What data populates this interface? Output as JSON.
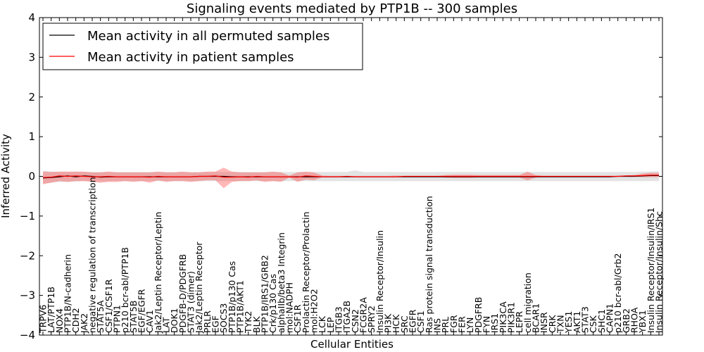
{
  "chart_data": {
    "type": "line",
    "title": "Signaling events mediated by PTP1B -- 300 samples",
    "xlabel": "Cellular Entities",
    "ylabel": "Inferred Activity",
    "ylim": [
      -4,
      4
    ],
    "yticks": [
      -4,
      -3,
      -2,
      -1,
      0,
      1,
      2,
      3,
      4
    ],
    "ytick_labels": [
      "−4",
      "−3",
      "−2",
      "−1",
      "0",
      "1",
      "2",
      "3",
      "4"
    ],
    "legend": {
      "position": "top-left",
      "entries": [
        {
          "label": "Mean activity in all permuted samples",
          "color": "#000000"
        },
        {
          "label": "Mean activity in patient samples",
          "color": "#ff0000"
        }
      ]
    },
    "categories": [
      "TRPV6",
      "LAT/PTP1B",
      "NOX4",
      "PTP1B/N-cadherin",
      "CDH2",
      "JAK2",
      "negative regulation of transcription",
      "STAT5A",
      "CSF1/CSF1R",
      "PTPN1",
      "p210 bcr-abl/PTP1B",
      "STAT5B",
      "EGF/EGFR",
      "CAV1",
      "Jak2/Leptin Receptor/Leptin",
      "LAT",
      "DOK1",
      "PDGFB-D/PDGFRB",
      "STAT3 (dimer)",
      "Jak2/Leptin Receptor",
      "PRLR",
      "EGF",
      "SOCS3",
      "PTP1B/p130 Cas",
      "PTP1B/AKT1",
      "TYK2",
      "BLK",
      "PTP1B/IRS1/GRB2",
      "Crk/p130 Cas",
      "alphaIIb/beta3 Integrin",
      "mol:NADPH",
      "CSF1R",
      "Prolactin Receptor/Prolactin",
      "mol:H2O2",
      "LCK",
      "LEP",
      "ITGB3",
      "ITGA2B",
      "CSN2",
      "FCGR2A",
      "SPRY2",
      "Insulin Receptor/Insulin",
      "PI3K",
      "HCK",
      "SRC",
      "EGFR",
      "CSF1",
      "Ras protein signal transduction",
      "INS",
      "PRL",
      "FGR",
      "FER",
      "LYN",
      "PDGFRB",
      "FYN",
      "IRS1",
      "PIK3CA",
      "PIK3R1",
      "LEPR",
      "cell migration",
      "BCAR1",
      "INSR",
      "CRK",
      "TXN",
      "YES1",
      "AKT1",
      "STAT3",
      "CSK",
      "SHC1",
      "CAPN1",
      "p210 bcr-abl/Grb2",
      "GRB2",
      "RHOA",
      "YBX1",
      "Insulin Receptor/Insulin/IRS1",
      "Insulin Receptor/Insulin/Shc"
    ],
    "series": [
      {
        "name": "Mean activity in all permuted samples",
        "color": "#000000",
        "values": [
          -0.04,
          -0.03,
          -0.01,
          0.01,
          -0.01,
          0.01,
          0.0,
          -0.02,
          -0.01,
          -0.01,
          -0.01,
          -0.01,
          -0.01,
          -0.01,
          -0.01,
          -0.01,
          -0.01,
          -0.01,
          -0.01,
          0.0,
          0.0,
          0.0,
          0.0,
          -0.01,
          -0.01,
          -0.01,
          -0.01,
          -0.01,
          -0.01,
          -0.01,
          -0.01,
          -0.01,
          -0.01,
          -0.01,
          -0.01,
          -0.01,
          -0.01,
          -0.01,
          -0.01,
          -0.01,
          -0.01,
          -0.01,
          -0.01,
          -0.01,
          -0.01,
          -0.01,
          -0.01,
          -0.01,
          -0.01,
          -0.01,
          -0.01,
          -0.01,
          -0.01,
          -0.01,
          -0.01,
          -0.01,
          -0.01,
          -0.01,
          -0.01,
          -0.01,
          -0.01,
          -0.01,
          -0.01,
          -0.01,
          -0.01,
          -0.01,
          -0.01,
          -0.01,
          -0.01,
          -0.01,
          0.0,
          0.0,
          0.0,
          0.01,
          0.02,
          0.02
        ],
        "band_low": [
          -0.18,
          -0.16,
          -0.14,
          -0.14,
          -0.13,
          -0.12,
          -0.12,
          -0.13,
          -0.12,
          -0.12,
          -0.12,
          -0.12,
          -0.12,
          -0.12,
          -0.12,
          -0.12,
          -0.12,
          -0.12,
          -0.12,
          -0.12,
          -0.12,
          -0.12,
          -0.12,
          -0.12,
          -0.12,
          -0.12,
          -0.12,
          -0.12,
          -0.12,
          -0.12,
          -0.12,
          -0.12,
          -0.12,
          -0.12,
          -0.12,
          -0.12,
          -0.12,
          -0.12,
          -0.12,
          -0.12,
          -0.12,
          -0.12,
          -0.12,
          -0.12,
          -0.12,
          -0.12,
          -0.12,
          -0.12,
          -0.12,
          -0.12,
          -0.12,
          -0.12,
          -0.12,
          -0.12,
          -0.12,
          -0.12,
          -0.12,
          -0.12,
          -0.12,
          -0.12,
          -0.12,
          -0.12,
          -0.12,
          -0.12,
          -0.12,
          -0.12,
          -0.12,
          -0.12,
          -0.12,
          -0.12,
          -0.12,
          -0.12,
          -0.12,
          -0.12,
          -0.12,
          -0.12
        ],
        "band_high": [
          0.14,
          0.12,
          0.11,
          0.11,
          0.11,
          0.11,
          0.11,
          0.11,
          0.11,
          0.11,
          0.11,
          0.11,
          0.11,
          0.11,
          0.11,
          0.11,
          0.11,
          0.11,
          0.11,
          0.11,
          0.11,
          0.11,
          0.11,
          0.11,
          0.11,
          0.11,
          0.11,
          0.11,
          0.11,
          0.11,
          0.11,
          0.11,
          0.11,
          0.11,
          0.11,
          0.11,
          0.11,
          0.11,
          0.15,
          0.11,
          0.11,
          0.11,
          0.11,
          0.11,
          0.11,
          0.11,
          0.11,
          0.11,
          0.11,
          0.11,
          0.11,
          0.11,
          0.11,
          0.11,
          0.11,
          0.11,
          0.11,
          0.11,
          0.11,
          0.11,
          0.11,
          0.11,
          0.11,
          0.11,
          0.11,
          0.11,
          0.11,
          0.11,
          0.11,
          0.11,
          0.11,
          0.11,
          0.11,
          0.12,
          0.12,
          0.13
        ]
      },
      {
        "name": "Mean activity in patient samples",
        "color": "#ff0000",
        "values": [
          -0.03,
          -0.02,
          0.01,
          0.0,
          0.01,
          0.0,
          -0.01,
          -0.01,
          0.0,
          -0.01,
          -0.01,
          -0.01,
          -0.01,
          -0.02,
          0.0,
          -0.01,
          -0.01,
          -0.01,
          -0.01,
          0.0,
          0.0,
          0.01,
          -0.02,
          -0.02,
          -0.01,
          -0.02,
          0.0,
          -0.01,
          -0.01,
          -0.01,
          -0.01,
          -0.02,
          0.01,
          0.0,
          -0.01,
          -0.01,
          -0.01,
          0.0,
          -0.01,
          -0.01,
          -0.01,
          -0.01,
          -0.01,
          -0.01,
          0.0,
          0.0,
          0.0,
          0.0,
          0.0,
          0.0,
          0.0,
          0.0,
          0.0,
          0.0,
          0.0,
          0.0,
          0.0,
          0.0,
          0.0,
          0.0,
          0.0,
          0.0,
          0.0,
          0.0,
          0.0,
          0.0,
          0.0,
          0.0,
          0.0,
          0.0,
          0.0,
          0.01,
          0.01,
          0.02,
          0.03,
          0.03
        ],
        "band_low": [
          -0.2,
          -0.16,
          -0.12,
          -0.14,
          -0.12,
          -0.12,
          -0.14,
          -0.16,
          -0.14,
          -0.14,
          -0.12,
          -0.14,
          -0.12,
          -0.16,
          -0.1,
          -0.14,
          -0.12,
          -0.12,
          -0.14,
          -0.12,
          -0.1,
          -0.1,
          -0.3,
          -0.14,
          -0.12,
          -0.12,
          -0.1,
          -0.14,
          -0.12,
          -0.14,
          -0.03,
          -0.14,
          -0.08,
          -0.1,
          -0.02,
          -0.01,
          -0.01,
          -0.01,
          -0.01,
          -0.01,
          -0.01,
          -0.01,
          -0.01,
          -0.02,
          -0.01,
          -0.01,
          -0.01,
          -0.01,
          -0.01,
          -0.03,
          -0.04,
          -0.04,
          -0.04,
          -0.03,
          -0.03,
          -0.03,
          -0.03,
          -0.03,
          -0.03,
          -0.1,
          -0.03,
          -0.01,
          -0.01,
          -0.01,
          -0.01,
          -0.01,
          -0.01,
          -0.01,
          -0.01,
          -0.01,
          -0.01,
          -0.01,
          -0.01,
          -0.02,
          -0.02,
          -0.02
        ],
        "band_high": [
          0.12,
          0.11,
          0.12,
          0.12,
          0.12,
          0.12,
          0.1,
          0.1,
          0.12,
          0.1,
          0.1,
          0.1,
          0.1,
          0.1,
          0.12,
          0.1,
          0.1,
          0.12,
          0.1,
          0.1,
          0.12,
          0.12,
          0.22,
          0.12,
          0.1,
          0.1,
          0.1,
          0.1,
          0.12,
          0.1,
          0.02,
          0.1,
          0.12,
          0.1,
          0.02,
          0.01,
          0.01,
          0.01,
          0.01,
          0.01,
          0.01,
          0.01,
          0.01,
          0.02,
          0.01,
          0.01,
          0.01,
          0.01,
          0.01,
          0.03,
          0.04,
          0.04,
          0.04,
          0.03,
          0.03,
          0.03,
          0.03,
          0.03,
          0.03,
          0.12,
          0.03,
          0.01,
          0.01,
          0.01,
          0.01,
          0.01,
          0.01,
          0.01,
          0.01,
          0.01,
          0.01,
          0.02,
          0.03,
          0.07,
          0.09,
          0.09
        ]
      }
    ]
  }
}
